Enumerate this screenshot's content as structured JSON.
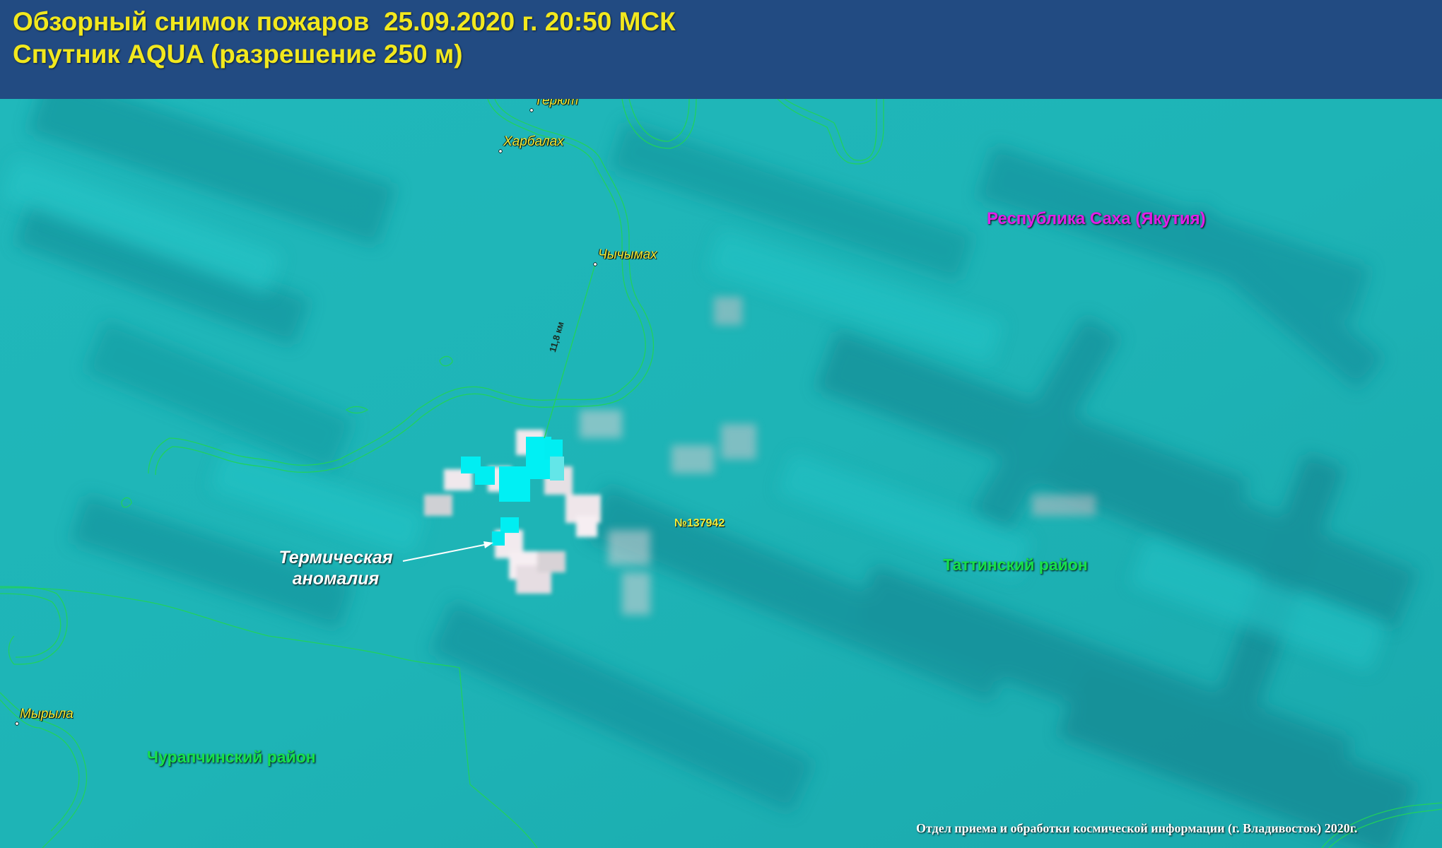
{
  "header": {
    "title_line1": "Обзорный снимок пожаров  25.09.2020 г. 20:50 МСК",
    "title_line2": "Спутник AQUA (разрешение 250 м)"
  },
  "map": {
    "settlements": {
      "teryut": "Терют",
      "kharbalakh": "Харбалах",
      "chychymakh": "Чычымах",
      "myryla": "Мырыла"
    },
    "region_label": "Республика Саха (Якутия)",
    "districts": {
      "tattinsky": "Таттинский район",
      "churapchinsky": "Чурапчинский район"
    },
    "distance_label": "11,8 км",
    "fire_id": "№137942",
    "anomaly_label_line1": "Термическая",
    "anomaly_label_line2": "аномалия",
    "credit": "Отдел приема и обработки космической информации (г. Владивосток)  2020г."
  },
  "colors": {
    "header_bg": "#224b82",
    "title_text": "#f2e81e",
    "terrain": "#1fb9bd",
    "boundary_line": "#22d25a",
    "region_label": "#e020e6",
    "district_label": "#18e04a",
    "settlement_label": "#f4ee3a",
    "fire_pixel": "#00f0f4"
  }
}
